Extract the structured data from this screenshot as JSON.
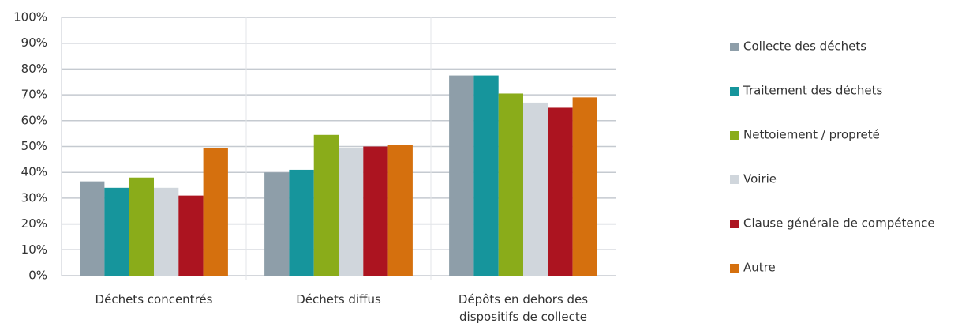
{
  "chart_data": {
    "type": "bar",
    "categories": [
      "Déchets concentrés",
      "Déchets diffus",
      "Dépôts en dehors des dispositifs de collecte"
    ],
    "series": [
      {
        "name": "Collecte des déchets",
        "color": "#8e9ea9",
        "values": [
          36.5,
          40,
          77.5
        ]
      },
      {
        "name": "Traitement des déchets",
        "color": "#16959c",
        "values": [
          34,
          41,
          77.5
        ]
      },
      {
        "name": "Nettoiement / propreté",
        "color": "#8aac1a",
        "values": [
          38,
          54.5,
          70.5
        ]
      },
      {
        "name": "Voirie",
        "color": "#d0d6dc",
        "values": [
          34,
          49.5,
          67
        ]
      },
      {
        "name": "Clause générale de compétence",
        "color": "#ac1420",
        "values": [
          31,
          50,
          65
        ]
      },
      {
        "name": "Autre",
        "color": "#d5700e",
        "values": [
          49.5,
          50.5,
          69
        ]
      }
    ],
    "ylim": [
      0,
      100
    ],
    "yticks": [
      {
        "value": 0,
        "label": "0%"
      },
      {
        "value": 10,
        "label": "10%"
      },
      {
        "value": 20,
        "label": "20%"
      },
      {
        "value": 30,
        "label": "30%"
      },
      {
        "value": 40,
        "label": "40%"
      },
      {
        "value": 50,
        "label": "50%"
      },
      {
        "value": 60,
        "label": "60%"
      },
      {
        "value": 70,
        "label": "70%"
      },
      {
        "value": 80,
        "label": "80%"
      },
      {
        "value": 90,
        "label": "90%"
      },
      {
        "value": 100,
        "label": "100%"
      }
    ],
    "grid": true,
    "legend": "right"
  }
}
